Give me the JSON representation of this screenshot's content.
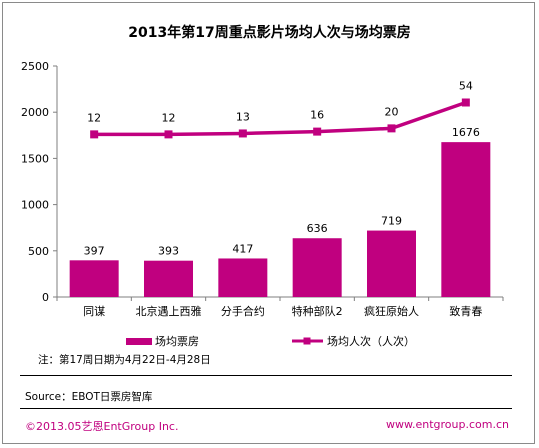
{
  "chart_data": {
    "type": "bar+line",
    "title": "2013年第17周重点影片场均人次与场均票房",
    "categories": [
      "同谋",
      "北京遇上西雅",
      "分手合约",
      "特种部队2",
      "疯狂原始人",
      "致青春"
    ],
    "series": [
      {
        "name": "场均票房",
        "type": "bar",
        "values": [
          397,
          393,
          417,
          636,
          719,
          1676
        ]
      },
      {
        "name": "场均人次（人次）",
        "type": "line",
        "values": [
          12,
          12,
          13,
          16,
          20,
          54
        ],
        "plotted_positions": [
          1760,
          1760,
          1770,
          1790,
          1825,
          2105
        ]
      }
    ],
    "y_axis": {
      "ticks": [
        "0",
        "500",
        "1000",
        "1500",
        "2000",
        "2500"
      ],
      "ylim": [
        0,
        2500
      ]
    },
    "grid": false,
    "legend": "bottom",
    "colors": {
      "bar": "#c0007f",
      "line": "#c0007f"
    }
  },
  "note": "注：第17周日期为4月22日-4月28日",
  "source": "Source：EBOT日票房智库",
  "footer": {
    "copyright": "©2013.05艺恩EntGroup Inc.",
    "website": "www.entgroup.com.cn"
  }
}
